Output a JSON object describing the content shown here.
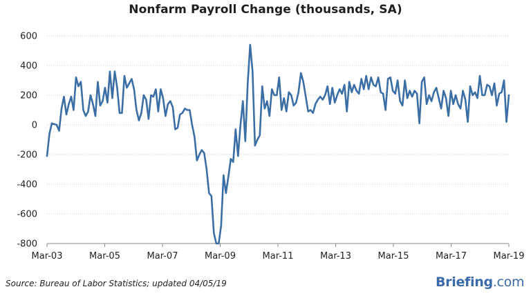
{
  "chart_data": {
    "type": "line",
    "title": "Nonfarm Payroll Change (thousands, SA)",
    "xlabel": "",
    "ylabel": "",
    "x_tick_labels": [
      "Mar-03",
      "Mar-05",
      "Mar-07",
      "Mar-09",
      "Mar-11",
      "Mar-13",
      "Mar-15",
      "Mar-17",
      "Mar-19"
    ],
    "y_tick_labels": [
      "600",
      "400",
      "200",
      "0",
      "-200",
      "-400",
      "-600",
      "-800"
    ],
    "ylim": [
      -800,
      600
    ],
    "x_range": [
      "Mar-03",
      "Mar-19"
    ],
    "grid": "horizontal dotted",
    "line_color": "#3a6ea5",
    "series": [
      {
        "x_start": "Mar-03",
        "frequency": "monthly",
        "values": [
          -210,
          -60,
          10,
          5,
          0,
          -40,
          110,
          190,
          70,
          140,
          190,
          100,
          320,
          260,
          290,
          100,
          60,
          90,
          200,
          140,
          60,
          290,
          130,
          160,
          250,
          150,
          360,
          180,
          360,
          250,
          80,
          80,
          330,
          250,
          280,
          310,
          240,
          100,
          30,
          80,
          200,
          170,
          40,
          200,
          190,
          240,
          90,
          240,
          180,
          60,
          140,
          160,
          120,
          -30,
          -20,
          70,
          80,
          110,
          100,
          100,
          0,
          -80,
          -240,
          -200,
          -170,
          -190,
          -300,
          -460,
          -480,
          -730,
          -800,
          -800,
          -680,
          -340,
          -460,
          -350,
          -230,
          -250,
          -30,
          -210,
          0,
          160,
          -110,
          280,
          540,
          360,
          -140,
          -100,
          -70,
          260,
          110,
          160,
          60,
          240,
          200,
          200,
          320,
          100,
          180,
          90,
          220,
          200,
          130,
          150,
          220,
          350,
          290,
          190,
          90,
          100,
          80,
          140,
          170,
          190,
          170,
          200,
          260,
          140,
          250,
          150,
          200,
          240,
          210,
          270,
          90,
          290,
          220,
          270,
          230,
          210,
          310,
          240,
          330,
          240,
          320,
          270,
          260,
          320,
          220,
          210,
          100,
          310,
          320,
          230,
          210,
          300,
          160,
          130,
          300,
          180,
          230,
          190,
          230,
          210,
          10,
          290,
          320,
          140,
          200,
          160,
          220,
          250,
          180,
          110,
          230,
          180,
          60,
          230,
          140,
          200,
          140,
          110,
          230,
          170,
          20,
          260,
          200,
          220,
          180,
          330,
          200,
          200,
          270,
          260,
          200,
          280,
          130,
          210,
          220,
          300,
          20,
          200
        ]
      }
    ],
    "source_note": "Source: Bureau of Labor Statistics; updated 04/05/19",
    "brand_name": "Briefing",
    "brand_tld": ".com"
  }
}
